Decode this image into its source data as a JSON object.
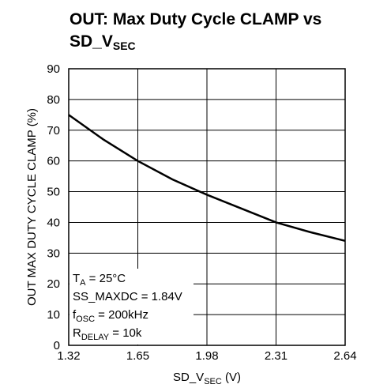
{
  "chart_data": {
    "type": "line",
    "title": [
      [
        {
          "text": "OUT: Max Duty Cycle CLAMP vs"
        }
      ],
      [
        {
          "text": "SD_V"
        },
        {
          "text": "SEC",
          "sub": true
        }
      ]
    ],
    "x_label": [
      {
        "text": "SD_V"
      },
      {
        "text": "SEC",
        "sub": true
      },
      {
        "text": " (V)"
      }
    ],
    "y_label": [
      {
        "text": "OUT MAX DUTY CYCLE CLAMP (%)"
      }
    ],
    "annotation": [
      [
        {
          "text": "T"
        },
        {
          "text": "A",
          "sub": true
        },
        {
          "text": " = 25°C"
        }
      ],
      [
        {
          "text": "SS_MAXDC = 1.84V"
        }
      ],
      [
        {
          "text": "f"
        },
        {
          "text": "OSC",
          "sub": true
        },
        {
          "text": " = 200kHz"
        }
      ],
      [
        {
          "text": "R"
        },
        {
          "text": "DELAY",
          "sub": true
        },
        {
          "text": " = 10k"
        }
      ]
    ],
    "x": [
      1.32,
      1.485,
      1.65,
      1.815,
      1.98,
      2.145,
      2.31,
      2.475,
      2.64
    ],
    "series": [
      {
        "color": "#000000",
        "values": [
          75,
          67,
          60,
          54,
          49,
          44.5,
          40,
          36.8,
          34
        ]
      }
    ],
    "xlim": [
      1.32,
      2.64
    ],
    "xticks": [
      1.32,
      1.65,
      1.98,
      2.31,
      2.64
    ],
    "ylim": [
      0,
      90
    ],
    "yticks": [
      0,
      10,
      20,
      30,
      40,
      50,
      60,
      70,
      80,
      90
    ],
    "grid": true
  }
}
